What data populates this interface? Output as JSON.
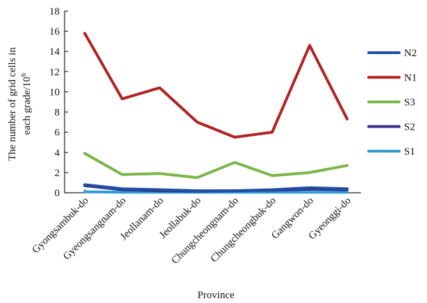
{
  "chart_data": {
    "type": "line",
    "title": "",
    "xlabel": "Province",
    "ylabel_line1": "The number of grid cells in",
    "ylabel_line2": "each grade/10",
    "ylabel_sup": "6",
    "ylim": [
      0,
      18
    ],
    "yticks": [
      "0",
      "2",
      "4",
      "6",
      "8",
      "10",
      "12",
      "14",
      "16",
      "18"
    ],
    "grid": false,
    "legend_position": "right",
    "categories": [
      "Gyongsambuk-do",
      "Gyeongsangnam-do",
      "Jeollanam-do",
      "Jeollabuk-do",
      "Chungcheongnam-do",
      "Chungcheongbuk-do",
      "Gangwon-do",
      "Gyeonggi-do"
    ],
    "series": [
      {
        "name": "N2",
        "color": "#1f4fa3",
        "values": [
          0.8,
          0.4,
          0.3,
          0.2,
          0.2,
          0.3,
          0.5,
          0.4
        ]
      },
      {
        "name": "N1",
        "color": "#b22222",
        "values": [
          15.8,
          9.3,
          10.4,
          7.0,
          5.5,
          6.0,
          14.6,
          7.3
        ]
      },
      {
        "name": "S3",
        "color": "#7ab648",
        "values": [
          3.9,
          1.8,
          1.9,
          1.5,
          3.0,
          1.7,
          2.0,
          2.7
        ]
      },
      {
        "name": "S2",
        "color": "#3b2a8a",
        "values": [
          0.7,
          0.3,
          0.2,
          0.15,
          0.2,
          0.25,
          0.35,
          0.3
        ]
      },
      {
        "name": "S1",
        "color": "#2d9fd8",
        "values": [
          0.1,
          0.05,
          0.05,
          0.05,
          0.05,
          0.05,
          0.05,
          0.05
        ]
      }
    ]
  }
}
